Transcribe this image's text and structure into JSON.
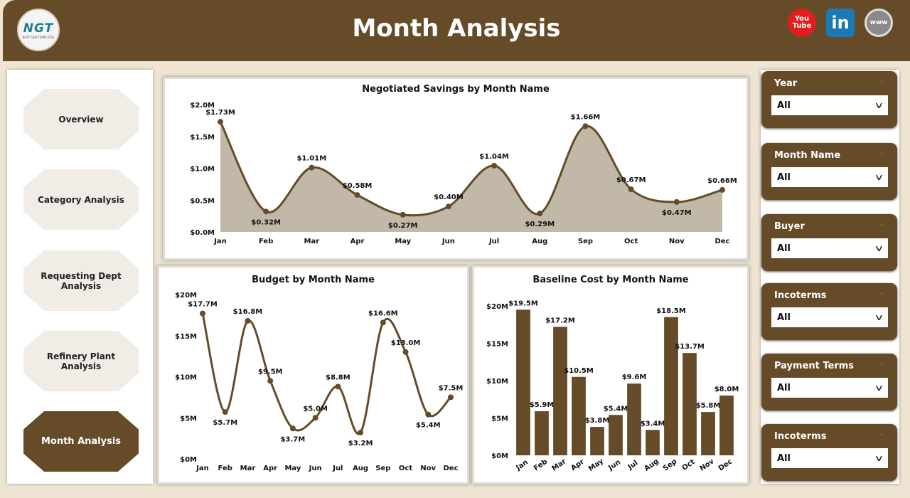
{
  "header": {
    "title": "Month Analysis",
    "logo_text": "NGT",
    "logo_sub": "NEXT GEN TEMPLATES",
    "social": [
      {
        "icon": "youtube-icon",
        "label": "You Tube"
      },
      {
        "icon": "linkedin-icon",
        "label": "in"
      },
      {
        "icon": "website-icon",
        "label": "www"
      }
    ]
  },
  "nav": {
    "items": [
      {
        "label": "Overview",
        "active": false
      },
      {
        "label": "Category Analysis",
        "active": false
      },
      {
        "label": "Requesting Dept Analysis",
        "active": false
      },
      {
        "label": "Refinery Plant Analysis",
        "active": false
      },
      {
        "label": "Month Analysis",
        "active": true
      }
    ]
  },
  "filters": [
    {
      "label": "Year",
      "value": "All"
    },
    {
      "label": "Month Name",
      "value": "All"
    },
    {
      "label": "Buyer",
      "value": "All"
    },
    {
      "label": "Incoterms",
      "value": "All"
    },
    {
      "label": "Payment Terms",
      "value": "All"
    },
    {
      "label": "Incoterms",
      "value": "All"
    }
  ],
  "colors": {
    "brand": "#654b27",
    "area": "#c2b8a8",
    "background": "#efe4d2"
  },
  "chart_data": [
    {
      "type": "area",
      "title": "Negotiated Savings by Month Name",
      "categories": [
        "Jan",
        "Feb",
        "Mar",
        "Apr",
        "May",
        "Jun",
        "Jul",
        "Aug",
        "Sep",
        "Oct",
        "Nov",
        "Dec"
      ],
      "values": [
        1.73,
        0.32,
        1.01,
        0.58,
        0.27,
        0.4,
        1.04,
        0.29,
        1.66,
        0.67,
        0.47,
        0.66
      ],
      "labels": [
        "$1.73M",
        "$0.32M",
        "$1.01M",
        "$0.58M",
        "$0.27M",
        "$0.40M",
        "$1.04M",
        "$0.29M",
        "$1.66M",
        "$0.67M",
        "$0.47M",
        "$0.66M"
      ],
      "yticks": [
        "$0.0M",
        "$0.5M",
        "$1.0M",
        "$1.5M",
        "$2.0M"
      ],
      "ylim": [
        0,
        2
      ],
      "unit": "$M"
    },
    {
      "type": "line",
      "title": "Budget by Month Name",
      "categories": [
        "Jan",
        "Feb",
        "Mar",
        "Apr",
        "May",
        "Jun",
        "Jul",
        "Aug",
        "Sep",
        "Oct",
        "Nov",
        "Dec"
      ],
      "values": [
        17.7,
        5.7,
        16.8,
        9.5,
        3.7,
        5.0,
        8.8,
        3.2,
        16.6,
        13.0,
        5.4,
        7.5
      ],
      "labels": [
        "$17.7M",
        "$5.7M",
        "$16.8M",
        "$9.5M",
        "$3.7M",
        "$5.0M",
        "$8.8M",
        "$3.2M",
        "$16.6M",
        "$13.0M",
        "$5.4M",
        "$7.5M"
      ],
      "yticks": [
        "$0M",
        "$5M",
        "$10M",
        "$15M",
        "$20M"
      ],
      "ylim": [
        0,
        20
      ],
      "unit": "$M"
    },
    {
      "type": "bar",
      "title": "Baseline Cost by Month Name",
      "categories": [
        "Jan",
        "Feb",
        "Mar",
        "Apr",
        "May",
        "Jun",
        "Jul",
        "Aug",
        "Sep",
        "Oct",
        "Nov",
        "Dec"
      ],
      "values": [
        19.5,
        5.9,
        17.2,
        10.5,
        3.8,
        5.4,
        9.6,
        3.4,
        18.5,
        13.7,
        5.8,
        8.0
      ],
      "labels": [
        "$19.5M",
        "$5.9M",
        "$17.2M",
        "$10.5M",
        "$3.8M",
        "$5.4M",
        "$9.6M",
        "$3.4M",
        "$18.5M",
        "$13.7M",
        "$5.8M",
        "$8.0M"
      ],
      "yticks": [
        "$0M",
        "$5M",
        "$10M",
        "$15M",
        "$20M"
      ],
      "ylim": [
        0,
        20
      ],
      "unit": "$M"
    }
  ]
}
